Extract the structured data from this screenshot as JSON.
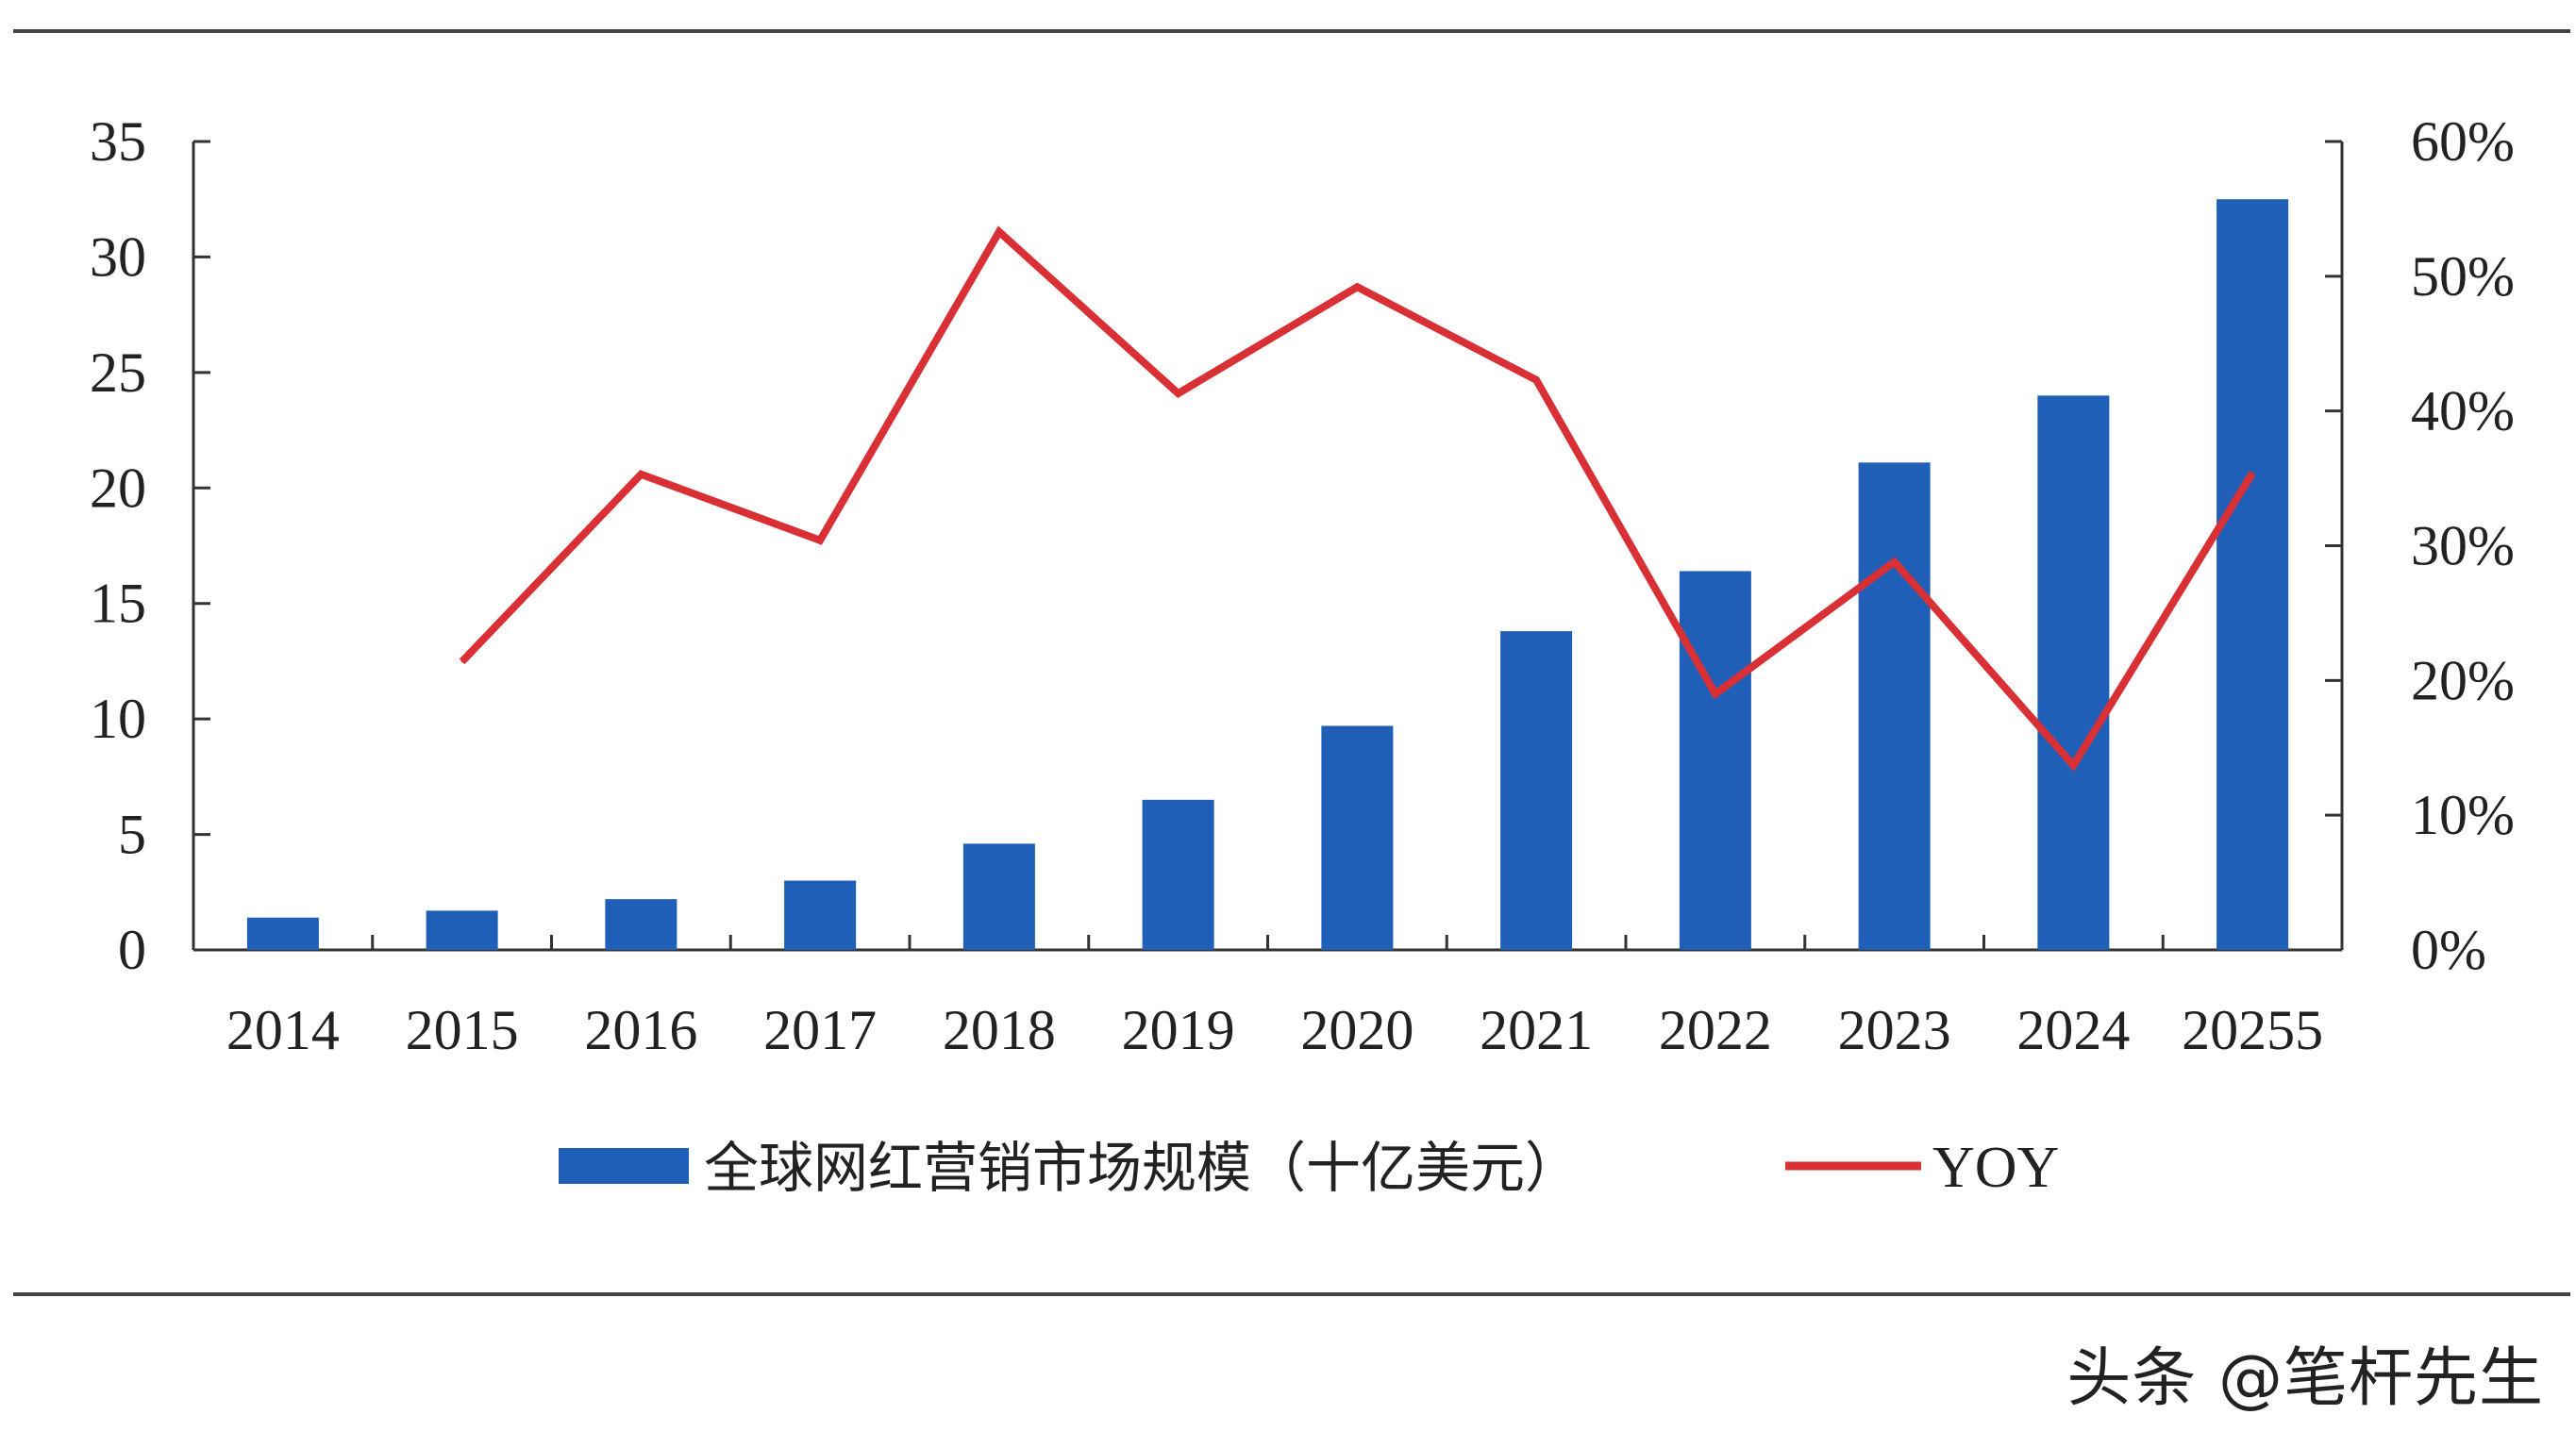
{
  "chart_data": {
    "type": "bar",
    "categories": [
      "2014",
      "2015",
      "2016",
      "2017",
      "2018",
      "2019",
      "2020",
      "2021",
      "2022",
      "2023",
      "2024",
      "20255"
    ],
    "series": [
      {
        "name": "全球网红营销市场规模（十亿美元）",
        "type": "bar",
        "axis": "left",
        "values": [
          1.4,
          1.7,
          2.2,
          3.0,
          4.6,
          6.5,
          9.7,
          13.8,
          16.4,
          21.1,
          24.0,
          32.5
        ]
      },
      {
        "name": "YOY",
        "type": "line",
        "axis": "right",
        "values": [
          null,
          21.4,
          35.3,
          30.4,
          53.3,
          41.3,
          49.2,
          42.3,
          19.0,
          28.8,
          13.7,
          35.4
        ]
      }
    ],
    "left_axis": {
      "ylim": [
        0,
        35
      ],
      "ticks": [
        "0",
        "5",
        "10",
        "15",
        "20",
        "25",
        "30",
        "35"
      ]
    },
    "right_axis": {
      "ylim": [
        0,
        60
      ],
      "ticks": [
        "0%",
        "10%",
        "20%",
        "30%",
        "40%",
        "50%",
        "60%"
      ]
    },
    "legend_position": "bottom-center",
    "colors": {
      "bar": "#1f5fb8",
      "line": "#d93035",
      "axis": "#333333"
    }
  },
  "watermark": "头条 @笔杆先生"
}
